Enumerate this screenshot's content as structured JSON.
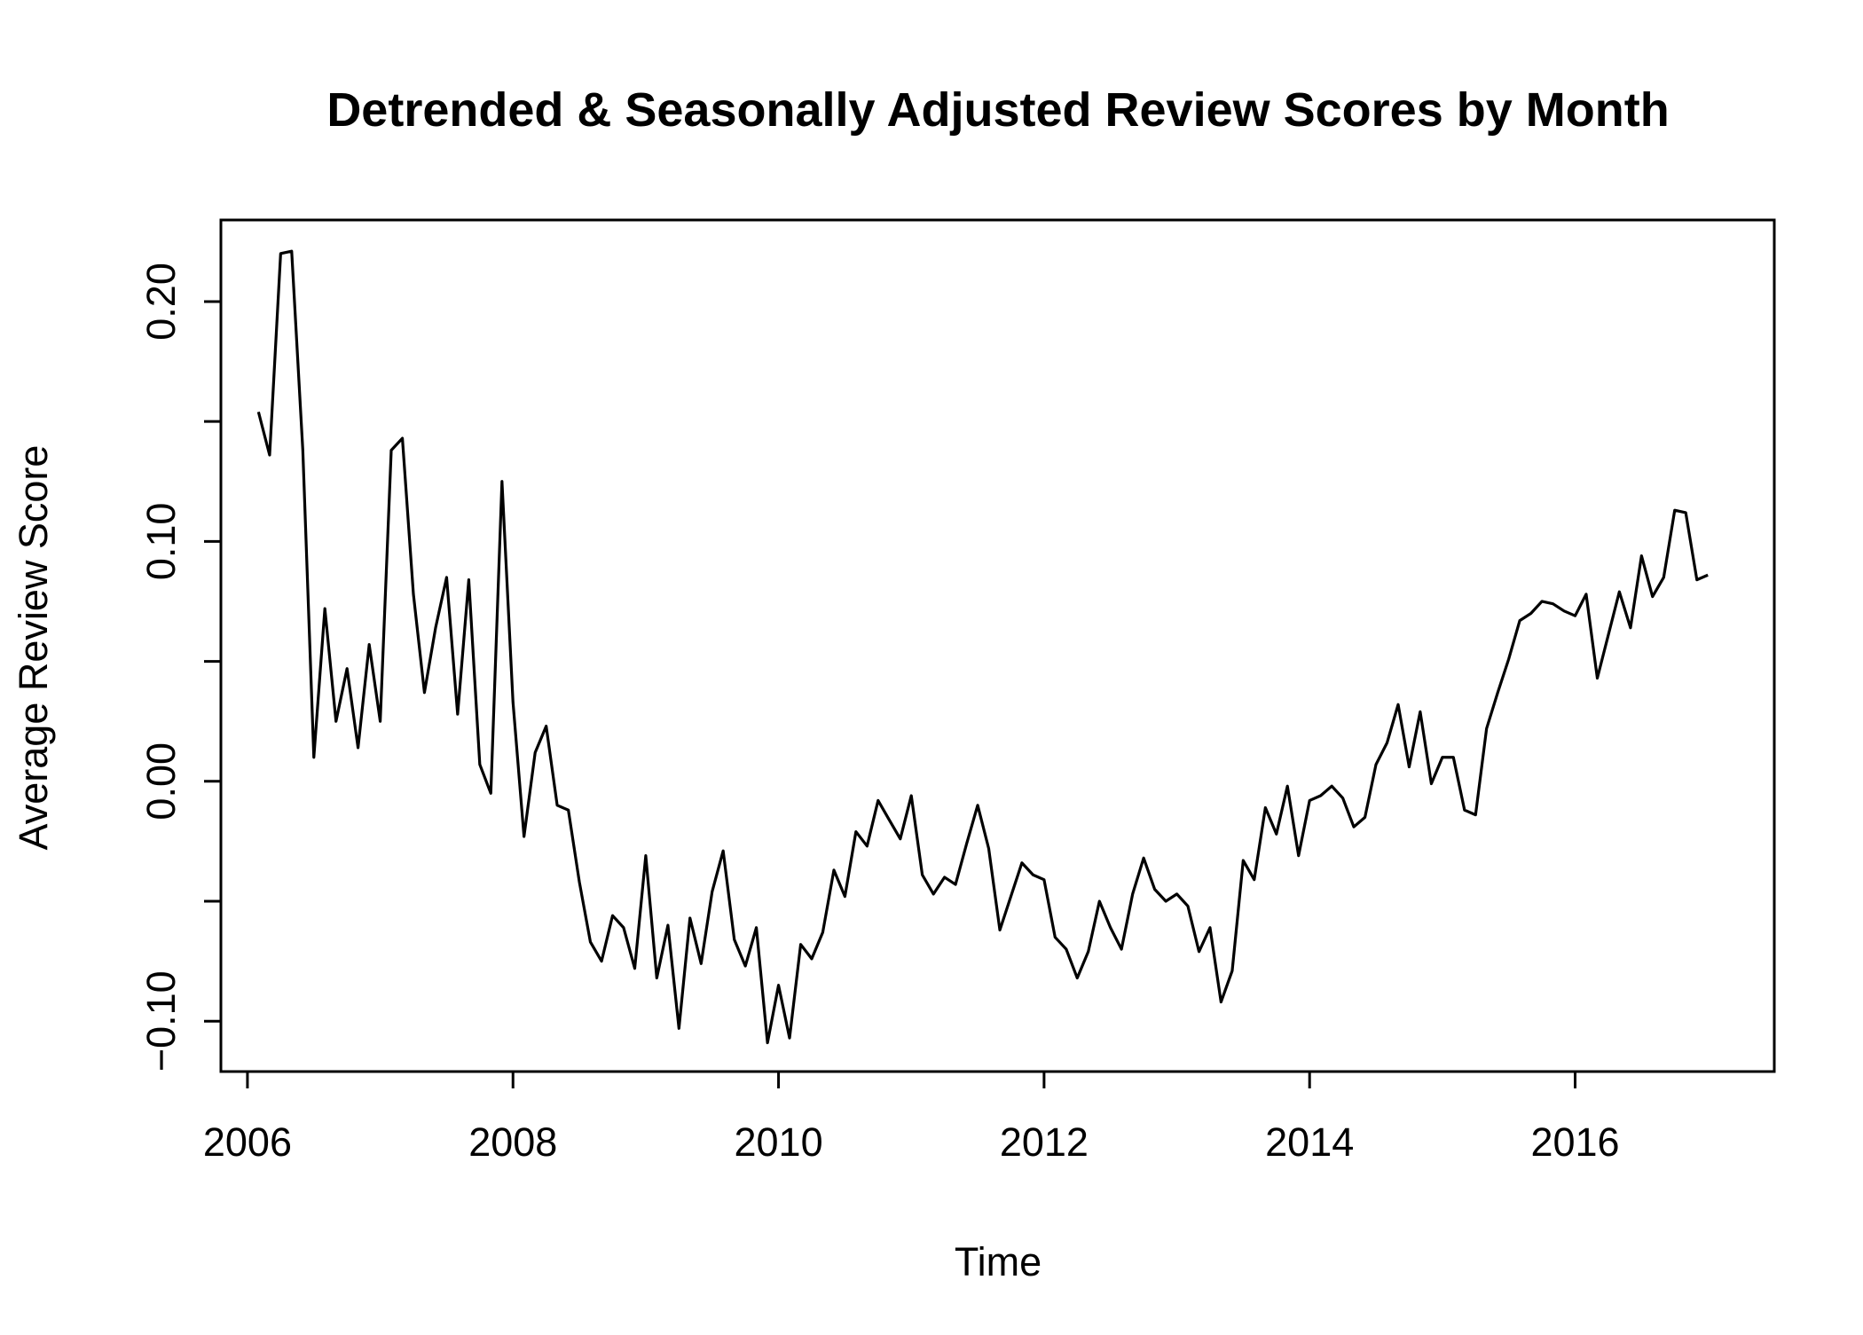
{
  "chart_data": {
    "type": "line",
    "title": "Detrended & Seasonally Adjusted Review Scores by Month",
    "xlabel": "Time",
    "ylabel": "Average Review Score",
    "xlim": [
      2005.8,
      2017.5
    ],
    "ylim": [
      -0.121,
      0.234
    ],
    "x_ticks": [
      2006,
      2008,
      2010,
      2012,
      2014,
      2016
    ],
    "x_tick_labels": [
      "2006",
      "2008",
      "2010",
      "2012",
      "2014",
      "2016"
    ],
    "y_ticks": [
      -0.1,
      -0.05,
      0.0,
      0.05,
      0.1,
      0.15,
      0.2
    ],
    "y_tick_labels": [
      "−0.10",
      "",
      "0.00",
      "",
      "0.10",
      "",
      "0.20"
    ],
    "grid": false,
    "line_color": "#000000",
    "series": [
      {
        "x": [
          2006.083,
          2006.167,
          2006.25,
          2006.333,
          2006.417,
          2006.5,
          2006.583,
          2006.667,
          2006.75,
          2006.833,
          2006.917,
          2007.0,
          2007.083,
          2007.167,
          2007.25,
          2007.333,
          2007.417,
          2007.5,
          2007.583,
          2007.667,
          2007.75,
          2007.833,
          2007.917,
          2008.0,
          2008.083,
          2008.167,
          2008.25,
          2008.333,
          2008.417,
          2008.5,
          2008.583,
          2008.667,
          2008.75,
          2008.833,
          2008.917,
          2009.0,
          2009.083,
          2009.167,
          2009.25,
          2009.333,
          2009.417,
          2009.5,
          2009.583,
          2009.667,
          2009.75,
          2009.833,
          2009.917,
          2010.0,
          2010.083,
          2010.167,
          2010.25,
          2010.333,
          2010.417,
          2010.5,
          2010.583,
          2010.667,
          2010.75,
          2010.833,
          2010.917,
          2011.0,
          2011.083,
          2011.167,
          2011.25,
          2011.333,
          2011.417,
          2011.5,
          2011.583,
          2011.667,
          2011.75,
          2011.833,
          2011.917,
          2012.0,
          2012.083,
          2012.167,
          2012.25,
          2012.333,
          2012.417,
          2012.5,
          2012.583,
          2012.667,
          2012.75,
          2012.833,
          2012.917,
          2013.0,
          2013.083,
          2013.167,
          2013.25,
          2013.333,
          2013.417,
          2013.5,
          2013.583,
          2013.667,
          2013.75,
          2013.833,
          2013.917,
          2014.0,
          2014.083,
          2014.167,
          2014.25,
          2014.333,
          2014.417,
          2014.5,
          2014.583,
          2014.667,
          2014.75,
          2014.833,
          2014.917,
          2015.0,
          2015.083,
          2015.167,
          2015.25,
          2015.333,
          2015.417,
          2015.5,
          2015.583,
          2015.667,
          2015.75,
          2015.833,
          2015.917,
          2016.0,
          2016.083,
          2016.167,
          2016.25,
          2016.333,
          2016.417,
          2016.5,
          2016.583,
          2016.667,
          2016.75,
          2016.833,
          2016.917,
          2017.0
        ],
        "values": [
          0.154,
          0.136,
          0.22,
          0.221,
          0.138,
          0.01,
          0.072,
          0.025,
          0.047,
          0.014,
          0.057,
          0.025,
          0.138,
          0.143,
          0.078,
          0.037,
          0.064,
          0.085,
          0.028,
          0.084,
          0.007,
          -0.005,
          0.125,
          0.033,
          -0.023,
          0.012,
          0.023,
          -0.01,
          -0.012,
          -0.042,
          -0.067,
          -0.075,
          -0.056,
          -0.061,
          -0.078,
          -0.031,
          -0.082,
          -0.06,
          -0.103,
          -0.057,
          -0.076,
          -0.046,
          -0.029,
          -0.066,
          -0.077,
          -0.061,
          -0.109,
          -0.085,
          -0.107,
          -0.068,
          -0.074,
          -0.063,
          -0.037,
          -0.048,
          -0.021,
          -0.027,
          -0.008,
          -0.016,
          -0.024,
          -0.006,
          -0.039,
          -0.047,
          -0.04,
          -0.043,
          -0.026,
          -0.01,
          -0.028,
          -0.062,
          -0.048,
          -0.034,
          -0.039,
          -0.041,
          -0.065,
          -0.07,
          -0.082,
          -0.071,
          -0.05,
          -0.061,
          -0.07,
          -0.047,
          -0.032,
          -0.045,
          -0.05,
          -0.047,
          -0.052,
          -0.071,
          -0.061,
          -0.092,
          -0.079,
          -0.033,
          -0.041,
          -0.011,
          -0.022,
          -0.002,
          -0.031,
          -0.008,
          -0.006,
          -0.002,
          -0.007,
          -0.019,
          -0.015,
          0.007,
          0.016,
          0.032,
          0.006,
          0.029,
          -0.001,
          0.01,
          0.01,
          -0.012,
          -0.014,
          0.022,
          0.037,
          0.051,
          0.067,
          0.07,
          0.075,
          0.074,
          0.071,
          0.069,
          0.078,
          0.043,
          0.061,
          0.079,
          0.064,
          0.094,
          0.077,
          0.085,
          0.113,
          0.112,
          0.084,
          0.086
        ]
      }
    ]
  }
}
